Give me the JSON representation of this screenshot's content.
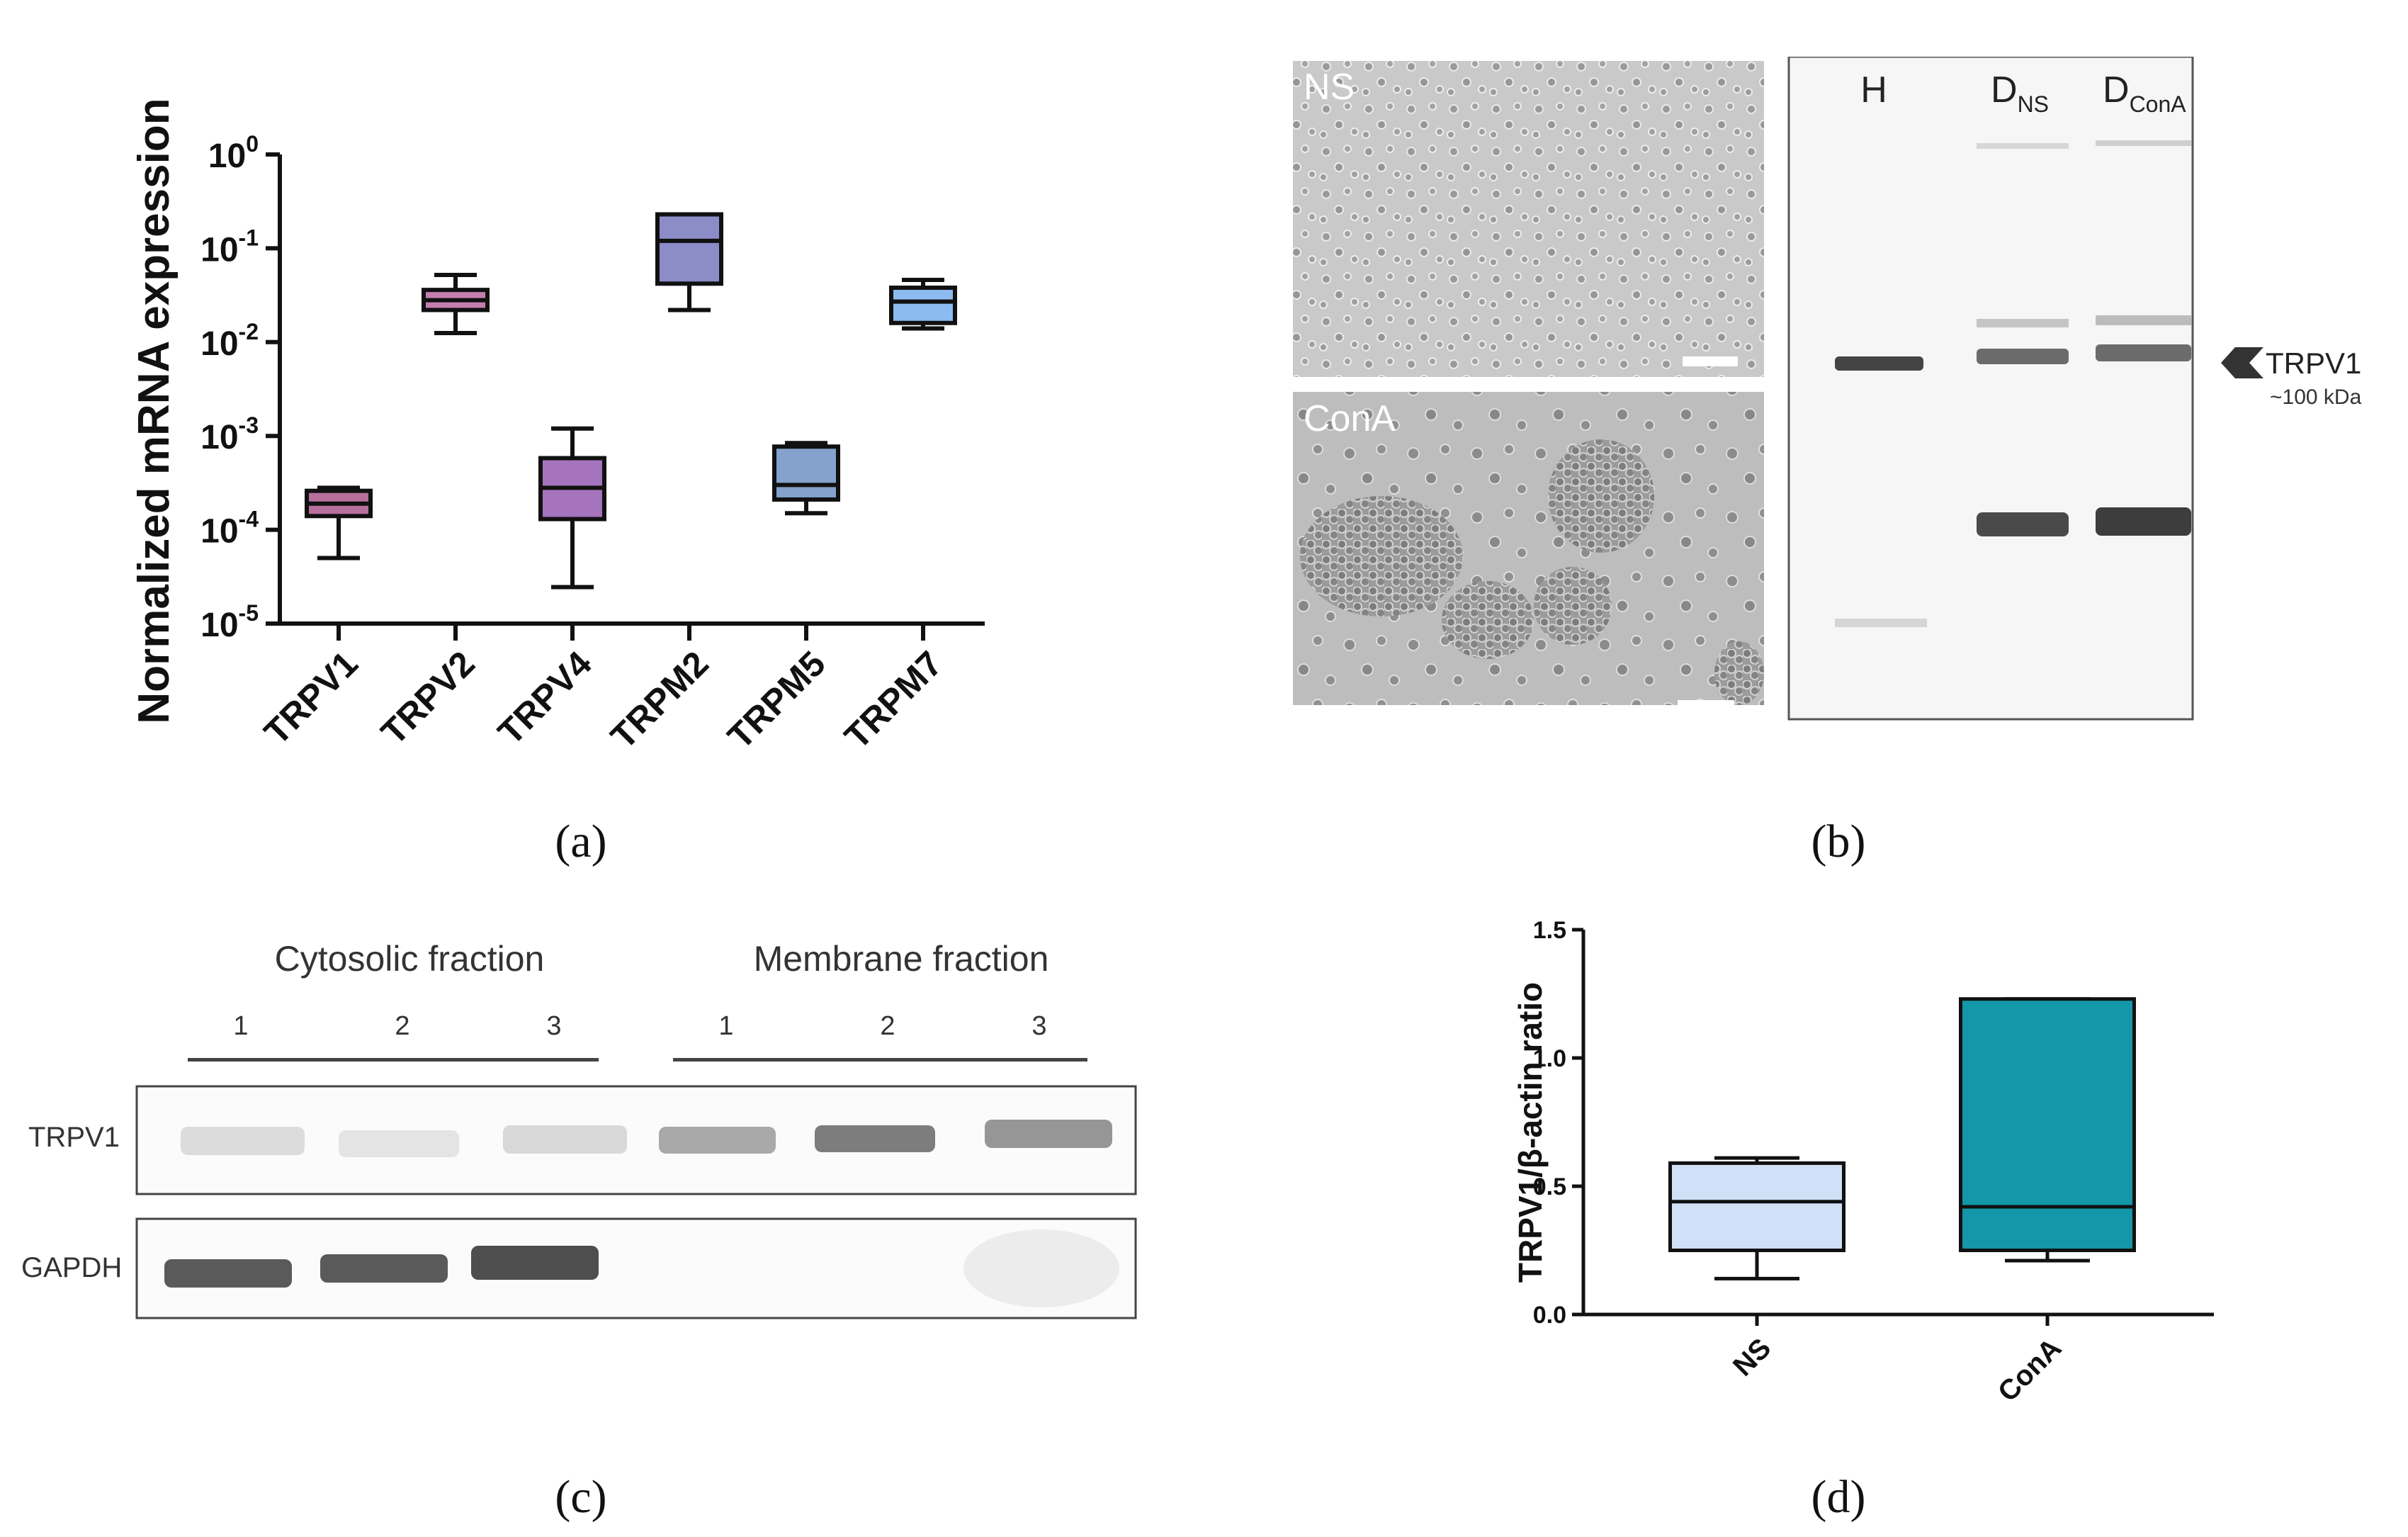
{
  "figure": {
    "captions": [
      {
        "open": "(",
        "letter": "a",
        "close": ")"
      },
      {
        "open": "(",
        "letter": "b",
        "close": ")"
      },
      {
        "open": "(",
        "letter": "c",
        "close": ")"
      },
      {
        "open": "(",
        "letter": "d",
        "close": ")"
      }
    ]
  },
  "chart_data": [
    {
      "panel": "a",
      "type": "box",
      "ylabel": "Normalized mRNA expression",
      "yscale": "log",
      "ylim": [
        1e-05,
        1
      ],
      "ytick_labels": [
        {
          "base": "10",
          "exp": "0"
        },
        {
          "base": "10",
          "exp": "-1"
        },
        {
          "base": "10",
          "exp": "-2"
        },
        {
          "base": "10",
          "exp": "-3"
        },
        {
          "base": "10",
          "exp": "-4"
        },
        {
          "base": "10",
          "exp": "-5"
        }
      ],
      "ytick_values": [
        1,
        0.1,
        0.01,
        0.001,
        0.0001,
        1e-05
      ],
      "categories": [
        "TRPV1",
        "TRPV2",
        "TRPV4",
        "TRPM2",
        "TRPM5",
        "TRPM7"
      ],
      "boxes": [
        {
          "min": 5e-05,
          "q1": 0.00014,
          "median": 0.00019,
          "q3": 0.00026,
          "max": 0.00028,
          "color": "#b7709c"
        },
        {
          "min": 0.0125,
          "q1": 0.022,
          "median": 0.028,
          "q3": 0.036,
          "max": 0.052,
          "color": "#c47fb1"
        },
        {
          "min": 2.45e-05,
          "q1": 0.00013,
          "median": 0.00028,
          "q3": 0.00058,
          "max": 0.0012,
          "color": "#a673bd"
        },
        {
          "min": 0.022,
          "q1": 0.042,
          "median": 0.12,
          "q3": 0.23,
          "max": 0.23,
          "color": "#8c8cc8"
        },
        {
          "min": 0.00015,
          "q1": 0.00021,
          "median": 0.0003,
          "q3": 0.00077,
          "max": 0.00084,
          "color": "#84a2cc"
        },
        {
          "min": 0.014,
          "q1": 0.016,
          "median": 0.027,
          "q3": 0.038,
          "max": 0.046,
          "color": "#8cbcef"
        }
      ]
    },
    {
      "panel": "d",
      "type": "box",
      "ylabel": "TRPV1/β-actin ratio",
      "ylim": [
        0,
        1.5
      ],
      "ytick_values": [
        0,
        0.5,
        1.0,
        1.5
      ],
      "ytick_labels": [
        "0.0",
        "0.5",
        "1.0",
        "1.5"
      ],
      "categories": [
        "NS",
        "ConA"
      ],
      "boxes": [
        {
          "min": 0.14,
          "q1": 0.25,
          "median": 0.44,
          "q3": 0.59,
          "max": 0.61,
          "color": "#cfe0f7"
        },
        {
          "min": 0.21,
          "q1": 0.25,
          "median": 0.42,
          "q3": 1.23,
          "max": 1.23,
          "color": "#1497a8"
        }
      ]
    }
  ],
  "panel_b": {
    "micro_labels": [
      "NS",
      "ConA"
    ],
    "lanes": {
      "h": "H",
      "dns_main": "D",
      "dns_sub": "NS",
      "dcona_main": "D",
      "dcona_sub": "ConA"
    },
    "marker_label": "TRPV1",
    "marker_size": "~100 kDa"
  },
  "panel_c": {
    "group_left": "Cytosolic fraction",
    "group_right": "Membrane fraction",
    "lanes": [
      "1",
      "2",
      "3",
      "1",
      "2",
      "3"
    ],
    "row_labels": [
      "TRPV1",
      "GAPDH"
    ]
  }
}
